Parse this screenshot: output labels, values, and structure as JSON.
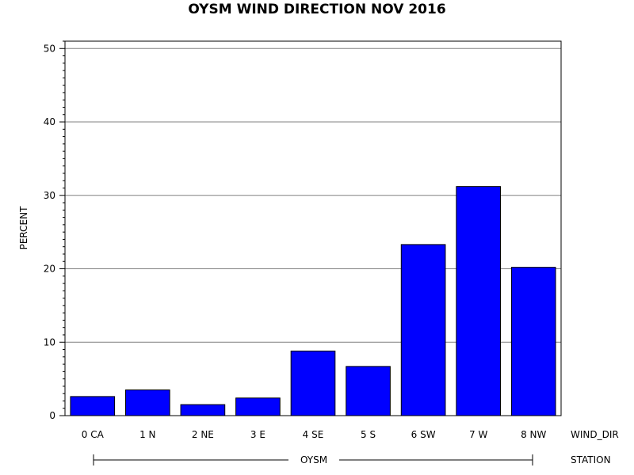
{
  "chart_data": {
    "type": "bar",
    "title": "OYSM WIND DIRECTION NOV 2016",
    "ylabel": "PERCENT",
    "xlabel": "WIND_DIR",
    "group_label": "STATION",
    "group_name": "OYSM",
    "categories": [
      "0 CA",
      "1 N",
      "2 NE",
      "3 E",
      "4 SE",
      "5 S",
      "6 SW",
      "7 W",
      "8 NW"
    ],
    "values": [
      2.6,
      3.5,
      1.5,
      2.4,
      8.8,
      6.7,
      23.3,
      31.2,
      20.2
    ],
    "ylim": [
      0,
      51
    ],
    "yticks": [
      0,
      10,
      20,
      30,
      40,
      50
    ],
    "grid": true,
    "bar_color": "#0000ff"
  }
}
